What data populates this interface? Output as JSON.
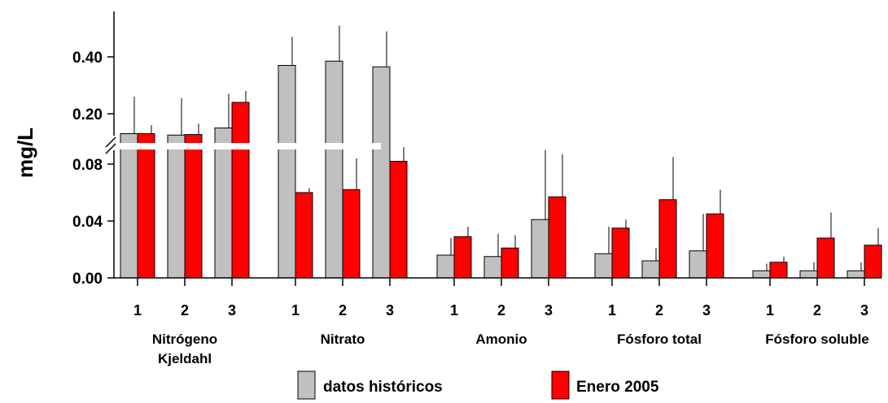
{
  "chart_data": {
    "type": "bar",
    "ylabel": "mg/L",
    "y_axis_broken": true,
    "lower_segment": {
      "ylim": [
        0,
        0.1
      ],
      "ticks": [
        "0.00",
        "0.04",
        "0.08"
      ]
    },
    "upper_segment": {
      "ylim": [
        0.08,
        0.52
      ],
      "ticks": [
        "0.20",
        "0.40"
      ]
    },
    "groups": [
      {
        "name": "Nitrógeno Kjeldahl",
        "categories": [
          "1",
          "2",
          "3"
        ]
      },
      {
        "name": "Nitrato",
        "categories": [
          "1",
          "2",
          "3"
        ]
      },
      {
        "name": "Amonio",
        "categories": [
          "1",
          "2",
          "3"
        ]
      },
      {
        "name": "Fósforo total",
        "categories": [
          "1",
          "2",
          "3"
        ]
      },
      {
        "name": "Fósforo soluble",
        "categories": [
          "1",
          "2",
          "3"
        ]
      }
    ],
    "series": [
      {
        "name": "datos históricos",
        "color": "#c0c0c0",
        "values": [
          0.13,
          0.125,
          0.15,
          0.37,
          0.385,
          0.365,
          0.016,
          0.015,
          0.041,
          0.017,
          0.012,
          0.019,
          0.005,
          0.005,
          0.005
        ],
        "error_upper": [
          0.26,
          0.255,
          0.27,
          0.47,
          0.51,
          0.49,
          0.028,
          0.031,
          0.09,
          0.036,
          0.021,
          0.045,
          0.01,
          0.011,
          0.011
        ]
      },
      {
        "name": "Enero 2005",
        "color": "#ff0000",
        "values": [
          0.13,
          0.127,
          0.24,
          0.06,
          0.062,
          0.082,
          0.029,
          0.021,
          0.057,
          0.035,
          0.055,
          0.045,
          0.011,
          0.028,
          0.023
        ],
        "error_upper": [
          0.16,
          0.165,
          0.28,
          0.063,
          0.084,
          0.092,
          0.036,
          0.03,
          0.087,
          0.041,
          0.085,
          0.062,
          0.015,
          0.046,
          0.035
        ]
      }
    ],
    "legend": {
      "placement": "bottom",
      "entries": [
        "datos históricos",
        "Enero 2005"
      ]
    }
  }
}
